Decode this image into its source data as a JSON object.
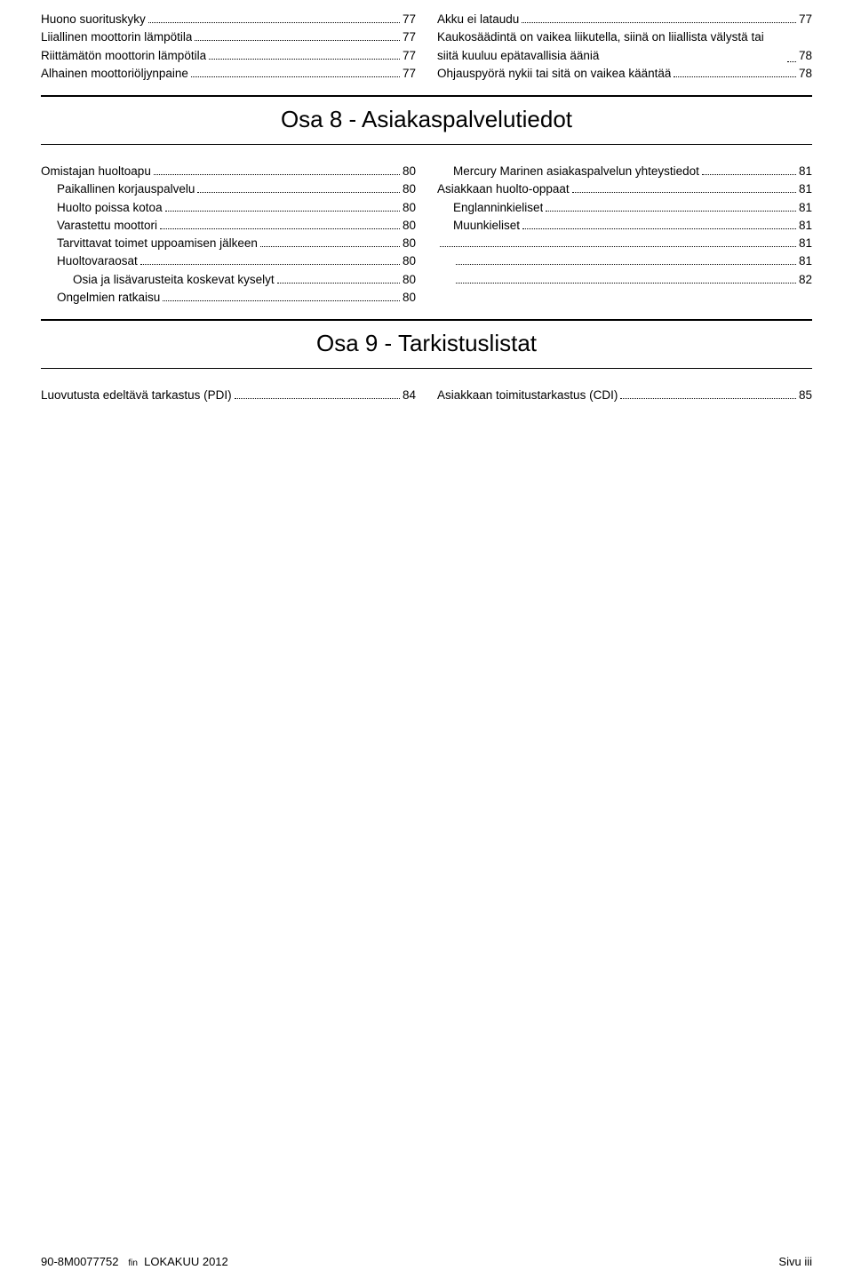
{
  "toc_top": {
    "left": [
      {
        "label": "Huono suorituskyky",
        "page": "77",
        "indent": 0
      },
      {
        "label": "Liiallinen moottorin lämpötila",
        "page": "77",
        "indent": 0
      },
      {
        "label": "Riittämätön moottorin lämpötila",
        "page": "77",
        "indent": 0
      },
      {
        "label": "Alhainen moottoriöljynpaine",
        "page": "77",
        "indent": 0
      }
    ],
    "right": [
      {
        "label": "Akku ei lataudu",
        "page": "77",
        "indent": 0
      },
      {
        "label": "Kaukosäädintä on vaikea liikutella, siinä on liiallista välystä tai siitä kuuluu epätavallisia ääniä",
        "page": "78",
        "indent": 0,
        "wrap": true
      },
      {
        "label": "Ohjauspyörä nykii tai sitä on vaikea kääntää",
        "page": "78",
        "indent": 0
      }
    ]
  },
  "section8": {
    "title": "Osa 8 - Asiakaspalvelutiedot",
    "left": [
      {
        "label": "Omistajan huoltoapu",
        "page": "80",
        "indent": 0
      },
      {
        "label": "Paikallinen korjauspalvelu",
        "page": "80",
        "indent": 1
      },
      {
        "label": "Huolto poissa kotoa",
        "page": "80",
        "indent": 1
      },
      {
        "label": "Varastettu moottori",
        "page": "80",
        "indent": 1
      },
      {
        "label": "Tarvittavat toimet uppoamisen jälkeen",
        "page": "80",
        "indent": 1
      },
      {
        "label": "Huoltovaraosat",
        "page": "80",
        "indent": 1
      },
      {
        "label": "Osia ja lisävarusteita koskevat kyselyt",
        "page": "80",
        "indent": 2
      },
      {
        "label": "Ongelmien ratkaisu",
        "page": "80",
        "indent": 1
      }
    ],
    "right": [
      {
        "label": "Mercury Marinen asiakaspalvelun yhteystiedot ",
        "page": "81",
        "indent": 1
      },
      {
        "label": "Asiakkaan huolto-oppaat",
        "page": "81",
        "indent": 0
      },
      {
        "label": "Englanninkieliset",
        "page": "81",
        "indent": 1
      },
      {
        "label": "Muunkieliset",
        "page": "81",
        "indent": 1
      },
      {
        "label": "",
        "page": "81",
        "indent": 0
      },
      {
        "label": "",
        "page": "81",
        "indent": 1
      },
      {
        "label": "",
        "page": "82",
        "indent": 1
      }
    ]
  },
  "section9": {
    "title": "Osa 9 - Tarkistuslistat",
    "left": [
      {
        "label": "Luovutusta edeltävä tarkastus (PDI)",
        "page": "84",
        "indent": 0
      }
    ],
    "right": [
      {
        "label": "Asiakkaan toimitustarkastus (CDI)",
        "page": "85",
        "indent": 0
      }
    ]
  },
  "footer": {
    "doc": "90-8M0077752",
    "lang": "fin",
    "date": "LOKAKUU  2012",
    "page": "Sivu  iii"
  }
}
